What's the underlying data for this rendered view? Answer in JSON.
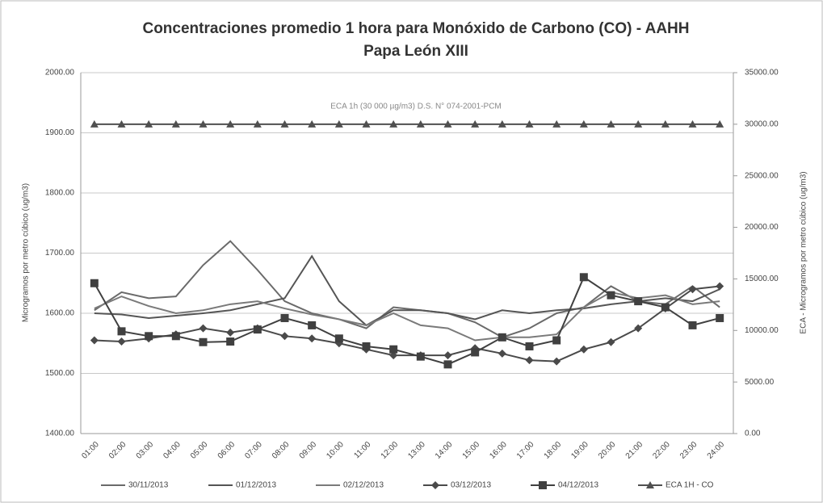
{
  "chart_data": {
    "type": "line",
    "title": [
      "Concentraciones promedio 1 hora para Monóxido de Carbono (CO) - AAHH",
      "Papa León XIII"
    ],
    "ylabel": "Microgramos por metro cúbico (ug/m3)",
    "y2label": "ECA - Microgramos por metro cúbico (ug/m3)",
    "annotation": "ECA 1h (30 000 µg/m3) D.S. N° 074-2001-PCM",
    "categories": [
      "01:00",
      "02:00",
      "03:00",
      "04:00",
      "05:00",
      "06:00",
      "07:00",
      "08:00",
      "09:00",
      "10:00",
      "11:00",
      "12:00",
      "13:00",
      "14:00",
      "15:00",
      "16:00",
      "17:00",
      "18:00",
      "19:00",
      "20:00",
      "21:00",
      "22:00",
      "23:00",
      "24:00"
    ],
    "ylim": [
      1400,
      2000
    ],
    "yticks": [
      {
        "value": 1400,
        "label": "1400.00"
      },
      {
        "value": 1500,
        "label": "1500.00"
      },
      {
        "value": 1600,
        "label": "1600.00"
      },
      {
        "value": 1700,
        "label": "1700.00"
      },
      {
        "value": 1800,
        "label": "1800.00"
      },
      {
        "value": 1900,
        "label": "1900.00"
      },
      {
        "value": 2000,
        "label": "2000.00"
      }
    ],
    "y2lim": [
      0,
      35000
    ],
    "y2ticks": [
      {
        "value": 0,
        "label": "0.00"
      },
      {
        "value": 5000,
        "label": "5000.00"
      },
      {
        "value": 10000,
        "label": "10000.00"
      },
      {
        "value": 15000,
        "label": "15000.00"
      },
      {
        "value": 20000,
        "label": "20000.00"
      },
      {
        "value": 25000,
        "label": "25000.00"
      },
      {
        "value": 30000,
        "label": "30000.00"
      },
      {
        "value": 35000,
        "label": "35000.00"
      }
    ],
    "grid": true,
    "legend": "bottom",
    "series": [
      {
        "name": "30/11/2013",
        "color": "#6a6a6a",
        "marker": "none",
        "values": [
          1605,
          1635,
          1625,
          1628,
          1680,
          1720,
          1672,
          1620,
          1600,
          1590,
          1575,
          1610,
          1605,
          1600,
          1585,
          1560,
          1575,
          1600,
          1610,
          1645,
          1620,
          1615,
          1645,
          1610
        ]
      },
      {
        "name": "01/12/2013",
        "color": "#555555",
        "marker": "none",
        "values": [
          1600,
          1598,
          1592,
          1596,
          1600,
          1605,
          1615,
          1625,
          1695,
          1620,
          1580,
          1605,
          1605,
          1600,
          1590,
          1605,
          1600,
          1605,
          1608,
          1615,
          1620,
          1625,
          1620,
          1640
        ]
      },
      {
        "name": "02/12/2013",
        "color": "#7a7a7a",
        "marker": "none",
        "values": [
          1608,
          1628,
          1612,
          1600,
          1605,
          1615,
          1620,
          1608,
          1598,
          1590,
          1580,
          1600,
          1580,
          1575,
          1555,
          1560,
          1560,
          1565,
          1610,
          1635,
          1625,
          1630,
          1615,
          1620
        ]
      },
      {
        "name": "03/12/2013",
        "color": "#4a4a4a",
        "marker": "diamond",
        "values": [
          1555,
          1553,
          1558,
          1565,
          1575,
          1568,
          1575,
          1562,
          1558,
          1550,
          1540,
          1530,
          1530,
          1530,
          1542,
          1533,
          1522,
          1520,
          1540,
          1552,
          1575,
          1608,
          1640,
          1645
        ]
      },
      {
        "name": "04/12/2013",
        "color": "#404040",
        "marker": "square",
        "values": [
          1650,
          1570,
          1562,
          1562,
          1552,
          1553,
          1573,
          1592,
          1580,
          1558,
          1545,
          1540,
          1528,
          1515,
          1535,
          1560,
          1545,
          1555,
          1660,
          1630,
          1620,
          1610,
          1580,
          1592
        ]
      },
      {
        "name": "ECA 1H - CO",
        "color": "#505050",
        "marker": "triangle",
        "axis": "y2",
        "values": [
          30000,
          30000,
          30000,
          30000,
          30000,
          30000,
          30000,
          30000,
          30000,
          30000,
          30000,
          30000,
          30000,
          30000,
          30000,
          30000,
          30000,
          30000,
          30000,
          30000,
          30000,
          30000,
          30000,
          30000
        ]
      }
    ]
  }
}
